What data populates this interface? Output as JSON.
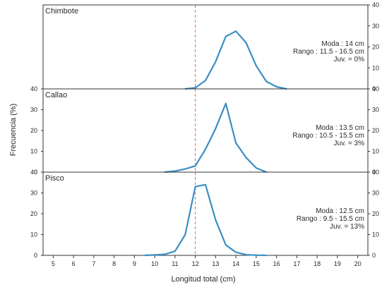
{
  "chart_data": {
    "type": "line",
    "xlabel": "Longitud total (cm)",
    "ylabel": "Frecuencia (%)",
    "xlim": [
      4.5,
      20.5
    ],
    "ylim": [
      0,
      40
    ],
    "x_ticks": [
      "5",
      "6",
      "7",
      "8",
      "9",
      "10",
      "11",
      "12",
      "13",
      "14",
      "15",
      "16",
      "17",
      "18",
      "19",
      "20"
    ],
    "y_ticks": [
      "0",
      "10",
      "20",
      "30",
      "40"
    ],
    "reference_line_x": 12,
    "line_color": "#3a8fc4",
    "reference_line_color": "#e05555",
    "panels": [
      {
        "title": "Chimbote",
        "annotations": [
          "Moda : 14 cm",
          "Rango : 11.5 - 16.5 cm",
          "Juv. = 0%"
        ],
        "series": {
          "x": [
            11.5,
            12,
            12.5,
            13,
            13.5,
            14,
            14.5,
            15,
            15.5,
            16,
            16.5
          ],
          "y": [
            0,
            0.5,
            4,
            13,
            25,
            27.5,
            22,
            11,
            3.5,
            1,
            0
          ]
        }
      },
      {
        "title": "Callao",
        "annotations": [
          "Moda : 13.5 cm",
          "Rango : 10.5 - 15.5 cm",
          "Juv. = 3%"
        ],
        "series": {
          "x": [
            10.5,
            11,
            11.5,
            12,
            12.5,
            13,
            13.5,
            14,
            14.5,
            15,
            15.5
          ],
          "y": [
            0,
            0.5,
            1.5,
            3,
            11,
            21,
            33,
            14,
            7,
            2,
            0
          ]
        }
      },
      {
        "title": "Pisco",
        "annotations": [
          "Moda : 12.5 cm",
          "Rango : 9.5 - 15.5 cm",
          "Juv. = 13%"
        ],
        "series": {
          "x": [
            9.5,
            10,
            10.5,
            11,
            11.5,
            12,
            12.5,
            13,
            13.5,
            14,
            14.5,
            15,
            15.5
          ],
          "y": [
            0,
            0.2,
            0.5,
            2,
            10,
            33,
            34,
            17,
            5,
            1.5,
            0.3,
            0.1,
            0
          ]
        }
      }
    ]
  }
}
